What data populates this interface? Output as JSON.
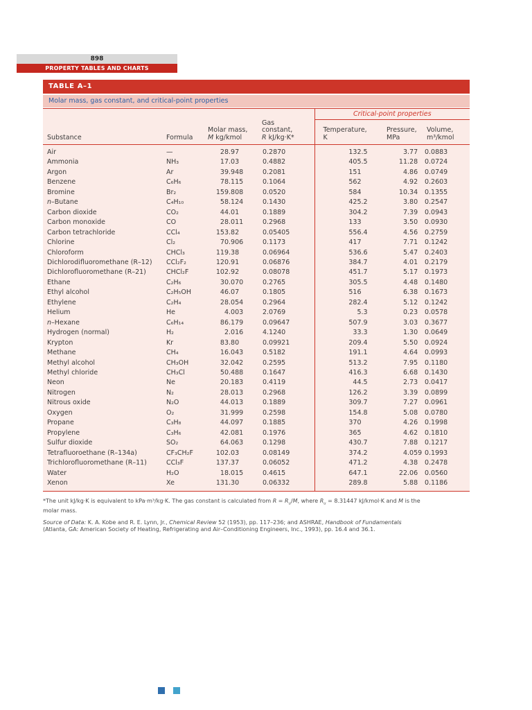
{
  "page": {
    "number": "898",
    "chapter": "PROPERTY TABLES AND CHARTS"
  },
  "table": {
    "title": "TABLE A–1",
    "caption": "Molar mass, gas constant, and critical-point properties",
    "critical_header": "Critical-point properties",
    "columns": {
      "substance": "Substance",
      "formula": "Formula",
      "molar_line1": "Molar mass,",
      "molar_sym": "M",
      "molar_unit": "kg/kmol",
      "gas_line1": "Gas",
      "gas_line2": "constant,",
      "gas_sym": "R",
      "gas_unit": "kJ/kg·K*",
      "temp_line1": "Temperature,",
      "temp_line2": "K",
      "press_line1": "Pressure,",
      "press_line2": "MPa",
      "vol_line1": "Volume,",
      "vol_line2": "m³/kmol"
    },
    "rows": [
      [
        "Air",
        "—",
        "28.97",
        "0.2870",
        "132.5",
        "3.77",
        "0.0883"
      ],
      [
        "Ammonia",
        "NH₃",
        "17.03",
        "0.4882",
        "405.5",
        "11.28",
        "0.0724"
      ],
      [
        "Argon",
        "Ar",
        "39.948",
        "0.2081",
        "151",
        "4.86",
        "0.0749"
      ],
      [
        "Benzene",
        "C₆H₆",
        "78.115",
        "0.1064",
        "562",
        "4.92",
        "0.2603"
      ],
      [
        "Bromine",
        "Br₂",
        "159.808",
        "0.0520",
        "584",
        "10.34",
        "0.1355"
      ],
      [
        "n–Butane",
        "C₄H₁₀",
        "58.124",
        "0.1430",
        "425.2",
        "3.80",
        "0.2547"
      ],
      [
        "Carbon dioxide",
        "CO₂",
        "44.01",
        "0.1889",
        "304.2",
        "7.39",
        "0.0943"
      ],
      [
        "Carbon monoxide",
        "CO",
        "28.011",
        "0.2968",
        "133",
        "3.50",
        "0.0930"
      ],
      [
        "Carbon tetrachloride",
        "CCl₄",
        "153.82",
        "0.05405",
        "556.4",
        "4.56",
        "0.2759"
      ],
      [
        "Chlorine",
        "Cl₂",
        "70.906",
        "0.1173",
        "417",
        "7.71",
        "0.1242"
      ],
      [
        "Chloroform",
        "CHCl₃",
        "119.38",
        "0.06964",
        "536.6",
        "5.47",
        "0.2403"
      ],
      [
        "Dichlorodifluoromethane (R–12)",
        "CCl₂F₂",
        "120.91",
        "0.06876",
        "384.7",
        "4.01",
        "0.2179"
      ],
      [
        "Dichlorofluoromethane (R–21)",
        "CHCl₂F",
        "102.92",
        "0.08078",
        "451.7",
        "5.17",
        "0.1973"
      ],
      [
        "Ethane",
        "C₂H₆",
        "30.070",
        "0.2765",
        "305.5",
        "4.48",
        "0.1480"
      ],
      [
        "Ethyl alcohol",
        "C₂H₅OH",
        "46.07",
        "0.1805",
        "516",
        "6.38",
        "0.1673"
      ],
      [
        "Ethylene",
        "C₂H₄",
        "28.054",
        "0.2964",
        "282.4",
        "5.12",
        "0.1242"
      ],
      [
        "Helium",
        "He",
        "4.003",
        "2.0769",
        "5.3",
        "0.23",
        "0.0578"
      ],
      [
        "n–Hexane",
        "C₆H₁₄",
        "86.179",
        "0.09647",
        "507.9",
        "3.03",
        "0.3677"
      ],
      [
        "Hydrogen (normal)",
        "H₂",
        "2.016",
        "4.1240",
        "33.3",
        "1.30",
        "0.0649"
      ],
      [
        "Krypton",
        "Kr",
        "83.80",
        "0.09921",
        "209.4",
        "5.50",
        "0.0924"
      ],
      [
        "Methane",
        "CH₄",
        "16.043",
        "0.5182",
        "191.1",
        "4.64",
        "0.0993"
      ],
      [
        "Methyl alcohol",
        "CH₃OH",
        "32.042",
        "0.2595",
        "513.2",
        "7.95",
        "0.1180"
      ],
      [
        "Methyl chloride",
        "CH₃Cl",
        "50.488",
        "0.1647",
        "416.3",
        "6.68",
        "0.1430"
      ],
      [
        "Neon",
        "Ne",
        "20.183",
        "0.4119",
        "44.5",
        "2.73",
        "0.0417"
      ],
      [
        "Nitrogen",
        "N₂",
        "28.013",
        "0.2968",
        "126.2",
        "3.39",
        "0.0899"
      ],
      [
        "Nitrous oxide",
        "N₂O",
        "44.013",
        "0.1889",
        "309.7",
        "7.27",
        "0.0961"
      ],
      [
        "Oxygen",
        "O₂",
        "31.999",
        "0.2598",
        "154.8",
        "5.08",
        "0.0780"
      ],
      [
        "Propane",
        "C₃H₈",
        "44.097",
        "0.1885",
        "370",
        "4.26",
        "0.1998"
      ],
      [
        "Propylene",
        "C₃H₆",
        "42.081",
        "0.1976",
        "365",
        "4.62",
        "0.1810"
      ],
      [
        "Sulfur dioxide",
        "SO₂",
        "64.063",
        "0.1298",
        "430.7",
        "7.88",
        "0.1217"
      ],
      [
        "Tetrafluoroethane (R–134a)",
        "CF₃CH₂F",
        "102.03",
        "0.08149",
        "374.2",
        "4.059",
        "0.1993"
      ],
      [
        "Trichlorofluoromethane (R–11)",
        "CCl₃F",
        "137.37",
        "0.06052",
        "471.2",
        "4.38",
        "0.2478"
      ],
      [
        "Water",
        "H₂O",
        "18.015",
        "0.4615",
        "647.1",
        "22.06",
        "0.0560"
      ],
      [
        "Xenon",
        "Xe",
        "131.30",
        "0.06332",
        "289.8",
        "5.88",
        "0.1186"
      ]
    ]
  },
  "footnote_parts": [
    {
      "t": "*The unit kJ/kg·K is equivalent to kPa·m³/kg·K. The gas constant is calculated from "
    },
    {
      "t": "R",
      "i": true
    },
    {
      "t": " = "
    },
    {
      "t": "R",
      "i": true
    },
    {
      "t": "u",
      "i": true,
      "s": true
    },
    {
      "t": "/"
    },
    {
      "t": "M",
      "i": true
    },
    {
      "t": ", where "
    },
    {
      "t": "R",
      "i": true
    },
    {
      "t": "u",
      "i": true,
      "s": true
    },
    {
      "t": " = 8.31447 kJ/kmol·K and "
    },
    {
      "t": "M",
      "i": true
    },
    {
      "t": " is the"
    },
    {
      "br": true
    },
    {
      "t": "molar mass."
    }
  ],
  "source_parts": [
    {
      "t": "Source of Data:",
      "i": true
    },
    {
      "t": " K. A. Kobe and R. E. Lynn, Jr., "
    },
    {
      "t": "Chemical Review",
      "i": true
    },
    {
      "t": " 52 (1953), pp. 117–236; and ASHRAE, "
    },
    {
      "t": "Handbook of Fundamentals",
      "i": true
    },
    {
      "br": true
    },
    {
      "t": "(Atlanta, GA: American Society of Heating, Refrigerating and Air–Conditioning Engineers, Inc., 1993), pp. 16.4 and 36.1."
    }
  ],
  "colors": {
    "accent_red": "#cd3529",
    "chapter_red": "#c5281f",
    "caption_bg": "#f2c6be",
    "caption_text": "#2a61a8",
    "table_bg": "#fbebe7",
    "pageno_bg": "#d9d9d9",
    "marker_dark": "#2f6fae",
    "marker_light": "#43a3cc"
  }
}
